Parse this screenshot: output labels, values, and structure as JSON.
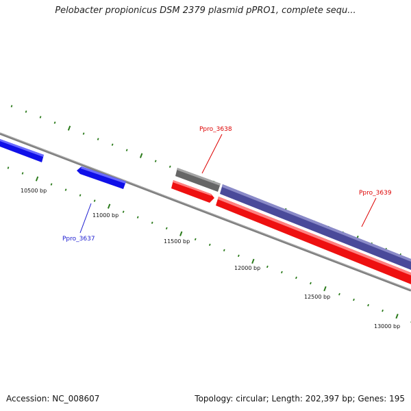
{
  "title": "Pelobacter propionicus DSM 2379 plasmid pPRO1, complete sequ...",
  "footer": {
    "accession": "Accession: NC_008607",
    "summary": "Topology: circular; Length: 202,397 bp; Genes: 195"
  },
  "colors": {
    "backbone": "#808080",
    "tick": "#2a7a1a",
    "gene_blue": "#1010e8",
    "gene_red": "#ee1010",
    "gene_gray": "#6a6a6a",
    "gene_purple": "#4a4a9a",
    "label_red": "#dd0000",
    "label_blue": "#1a1ad0"
  },
  "position_labels": [
    "10500 bp",
    "11000 bp",
    "11500 bp",
    "12000 bp",
    "12500 bp",
    "13000 bp"
  ],
  "genes": [
    {
      "id": "Ppro_3637",
      "label": "Ppro_3637",
      "color": "blue"
    },
    {
      "id": "Ppro_3638",
      "label": "Ppro_3638",
      "color": "red"
    },
    {
      "id": "Ppro_3639",
      "label": "Ppro_3639",
      "color": "red"
    }
  ]
}
